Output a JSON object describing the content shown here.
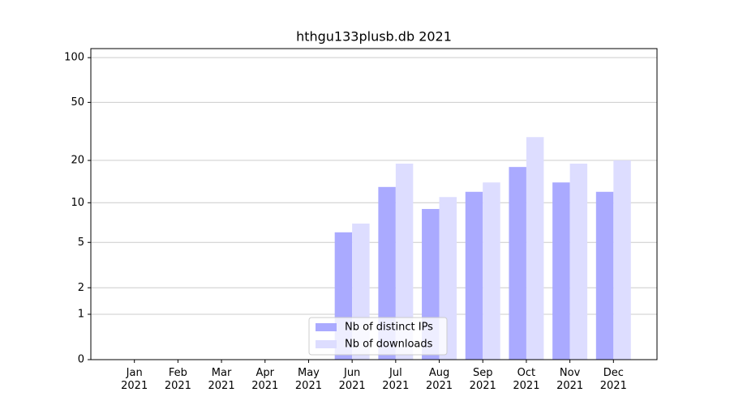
{
  "chart_data": {
    "type": "bar",
    "title": "hthgu133plusb.db 2021",
    "categories": [
      "Jan\n2021",
      "Feb\n2021",
      "Mar\n2021",
      "Apr\n2021",
      "May\n2021",
      "Jun\n2021",
      "Jul\n2021",
      "Aug\n2021",
      "Sep\n2021",
      "Oct\n2021",
      "Nov\n2021",
      "Dec\n2021"
    ],
    "series": [
      {
        "name": "Nb of distinct IPs",
        "color": "#aaaaff",
        "values": [
          0,
          0,
          0,
          0,
          0,
          6,
          13,
          9,
          12,
          18,
          14,
          12
        ]
      },
      {
        "name": "Nb of downloads",
        "color": "#ddddff",
        "values": [
          0,
          0,
          0,
          0,
          0,
          7,
          19,
          11,
          14,
          29,
          19,
          20
        ]
      }
    ],
    "y_scale": "log1p",
    "ylim": [
      0,
      115
    ],
    "yticks": [
      0,
      1,
      2,
      5,
      10,
      20,
      50,
      100
    ],
    "grid": true,
    "legend": "lower center"
  }
}
